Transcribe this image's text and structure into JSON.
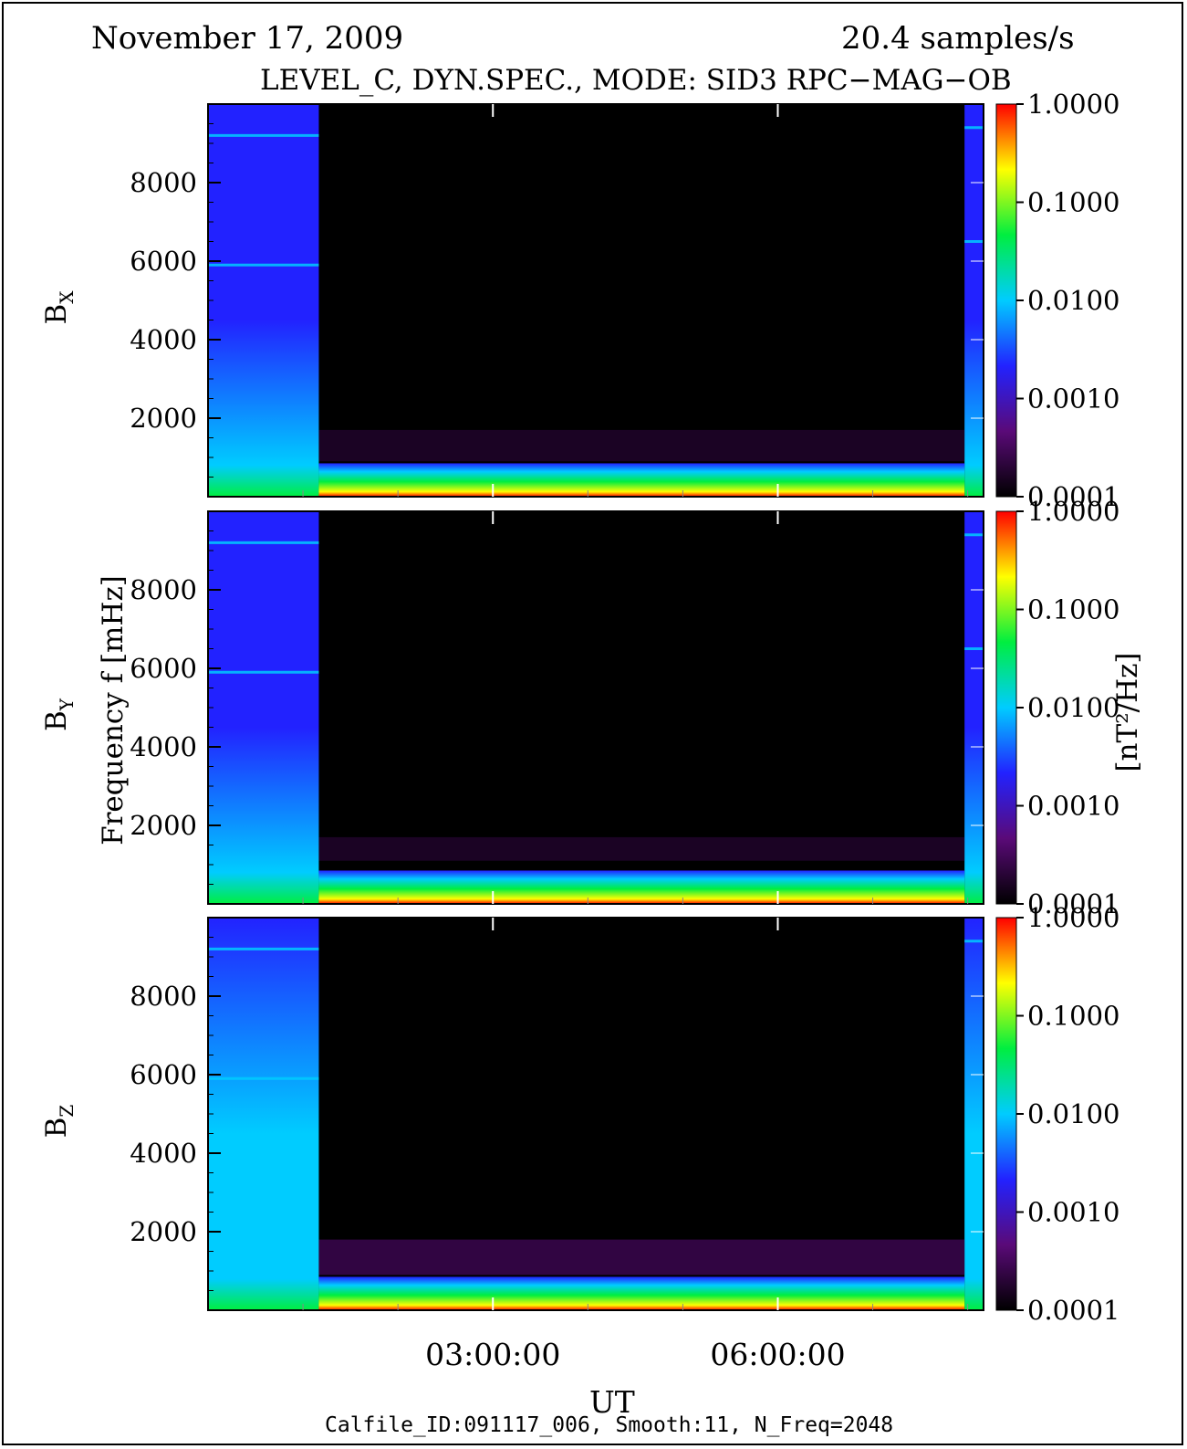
{
  "header": {
    "date": "November 17, 2009",
    "sample_rate": "20.4 samples/s",
    "mode_line": "LEVEL_C, DYN.SPEC., MODE: SID3 RPC−MAG−OB"
  },
  "footer": {
    "calfile": "Calfile_ID:091117_006, Smooth:11, N_Freq=2048"
  },
  "colors": {
    "background": "#000000",
    "colormap": [
      "#000000",
      "#5a0a78",
      "#2222ff",
      "#00ccff",
      "#00ee40",
      "#ffff00",
      "#ff0000"
    ]
  },
  "chart_data": {
    "type": "heatmap",
    "xlabel": "UT",
    "ylabel": "Frequency f [mHz]",
    "colorbar_label": "[nT²/Hz]",
    "colorbar_ticks": [
      "1.0000",
      "0.1000",
      "0.0100",
      "0.0010",
      "0.0001"
    ],
    "colorbar_range": [
      0.0001,
      1.0
    ],
    "colorbar_scale": "log",
    "x_ticks": [
      "03:00:00",
      "06:00:00"
    ],
    "x_range": [
      "00:00:00",
      "08:10:00"
    ],
    "y_ticks": [
      2000,
      4000,
      6000,
      8000
    ],
    "y_range": [
      0,
      10000
    ],
    "panels": [
      {
        "name": "BX",
        "main": "B",
        "sub": "X",
        "data_gap": [
          "01:10:00",
          "07:58:00"
        ],
        "background_band_top_mHz": 850,
        "background_band_level": 0.01,
        "noise_band_mHz": [
          900,
          1700
        ],
        "early_lines_mHz": [
          9200,
          5900
        ],
        "late_lines_mHz": [
          9400,
          6500
        ]
      },
      {
        "name": "BY",
        "main": "B",
        "sub": "Y",
        "data_gap": [
          "01:10:00",
          "07:58:00"
        ],
        "background_band_top_mHz": 850,
        "background_band_level": 0.01,
        "noise_band_mHz": [
          1100,
          1700
        ],
        "early_lines_mHz": [
          9200,
          5900
        ],
        "late_lines_mHz": [
          9400,
          6500
        ]
      },
      {
        "name": "BZ",
        "main": "B",
        "sub": "Z",
        "data_gap": [
          "01:10:00",
          "07:58:00"
        ],
        "background_band_top_mHz": 850,
        "background_band_level": 0.01,
        "noise_band_mHz": [
          900,
          1800
        ],
        "early_lines_mHz": [
          9200,
          5900
        ],
        "late_lines_mHz": [
          9400
        ]
      }
    ]
  }
}
